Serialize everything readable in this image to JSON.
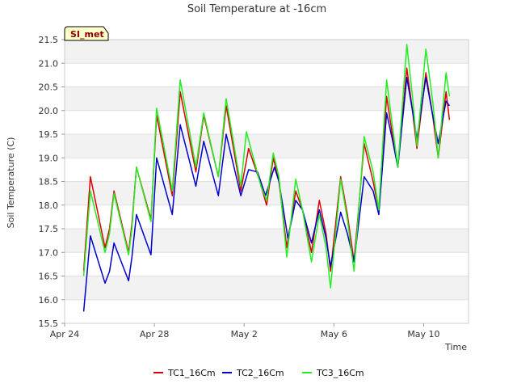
{
  "chart_data": {
    "type": "line",
    "title": "Soil Temperature at -16cm",
    "xlabel": "Time",
    "ylabel": "Soil Temperature (C)",
    "badge": "SI_met",
    "ylim": [
      15.5,
      21.5
    ],
    "yticks": [
      15.5,
      16.0,
      16.5,
      17.0,
      17.5,
      18.0,
      18.5,
      19.0,
      19.5,
      20.0,
      20.5,
      21.0,
      21.5
    ],
    "xlim_days": [
      0,
      18
    ],
    "xticks": [
      {
        "day": 0,
        "label": "Apr 24"
      },
      {
        "day": 4,
        "label": "Apr 28"
      },
      {
        "day": 8,
        "label": "May 2"
      },
      {
        "day": 12,
        "label": "May 6"
      },
      {
        "day": 16,
        "label": "May 10"
      }
    ],
    "series": [
      {
        "name": "TC1_16Cm",
        "color": "#dd0000",
        "points": [
          [
            0.85,
            16.6
          ],
          [
            1.15,
            18.6
          ],
          [
            1.8,
            17.1
          ],
          [
            2.0,
            17.5
          ],
          [
            2.2,
            18.3
          ],
          [
            2.85,
            17.0
          ],
          [
            3.0,
            17.6
          ],
          [
            3.2,
            18.8
          ],
          [
            3.85,
            17.7
          ],
          [
            4.1,
            19.9
          ],
          [
            4.8,
            18.2
          ],
          [
            5.15,
            20.4
          ],
          [
            5.85,
            18.7
          ],
          [
            6.2,
            19.9
          ],
          [
            6.85,
            18.6
          ],
          [
            7.2,
            20.1
          ],
          [
            7.85,
            18.3
          ],
          [
            8.2,
            19.2
          ],
          [
            8.7,
            18.5
          ],
          [
            9.0,
            18.0
          ],
          [
            9.3,
            19.0
          ],
          [
            9.55,
            18.5
          ],
          [
            9.9,
            17.1
          ],
          [
            10.3,
            18.3
          ],
          [
            10.6,
            17.9
          ],
          [
            11.0,
            17.0
          ],
          [
            11.35,
            18.1
          ],
          [
            11.65,
            17.4
          ],
          [
            11.85,
            16.6
          ],
          [
            12.3,
            18.6
          ],
          [
            12.6,
            17.8
          ],
          [
            12.9,
            16.8
          ],
          [
            13.35,
            19.3
          ],
          [
            13.75,
            18.5
          ],
          [
            14.0,
            17.9
          ],
          [
            14.35,
            20.3
          ],
          [
            14.6,
            19.5
          ],
          [
            14.85,
            18.8
          ],
          [
            15.25,
            20.9
          ],
          [
            15.5,
            20.0
          ],
          [
            15.7,
            19.2
          ],
          [
            16.1,
            20.8
          ],
          [
            16.4,
            19.9
          ],
          [
            16.65,
            19.0
          ],
          [
            17.0,
            20.4
          ],
          [
            17.15,
            19.8
          ]
        ]
      },
      {
        "name": "TC2_16Cm",
        "color": "#0000cc",
        "points": [
          [
            0.85,
            15.75
          ],
          [
            1.15,
            17.35
          ],
          [
            1.8,
            16.35
          ],
          [
            2.0,
            16.6
          ],
          [
            2.2,
            17.2
          ],
          [
            2.85,
            16.4
          ],
          [
            3.0,
            16.9
          ],
          [
            3.2,
            17.8
          ],
          [
            3.85,
            16.95
          ],
          [
            4.1,
            19.0
          ],
          [
            4.8,
            17.8
          ],
          [
            5.15,
            19.7
          ],
          [
            5.85,
            18.4
          ],
          [
            6.2,
            19.35
          ],
          [
            6.85,
            18.2
          ],
          [
            7.2,
            19.5
          ],
          [
            7.85,
            18.2
          ],
          [
            8.2,
            18.75
          ],
          [
            8.6,
            18.7
          ],
          [
            8.95,
            18.2
          ],
          [
            9.35,
            18.8
          ],
          [
            9.55,
            18.5
          ],
          [
            9.95,
            17.3
          ],
          [
            10.3,
            18.1
          ],
          [
            10.6,
            17.9
          ],
          [
            11.0,
            17.2
          ],
          [
            11.35,
            17.9
          ],
          [
            11.65,
            17.3
          ],
          [
            11.85,
            16.7
          ],
          [
            12.3,
            17.85
          ],
          [
            12.6,
            17.4
          ],
          [
            12.9,
            16.8
          ],
          [
            13.35,
            18.6
          ],
          [
            13.75,
            18.3
          ],
          [
            14.0,
            17.8
          ],
          [
            14.35,
            19.95
          ],
          [
            14.6,
            19.4
          ],
          [
            14.85,
            18.8
          ],
          [
            15.25,
            20.7
          ],
          [
            15.5,
            20.0
          ],
          [
            15.7,
            19.4
          ],
          [
            16.1,
            20.7
          ],
          [
            16.4,
            19.9
          ],
          [
            16.65,
            19.3
          ],
          [
            17.0,
            20.2
          ],
          [
            17.15,
            20.1
          ]
        ]
      },
      {
        "name": "TC3_16Cm",
        "color": "#22ee22",
        "points": [
          [
            0.85,
            16.5
          ],
          [
            1.15,
            18.3
          ],
          [
            1.8,
            17.0
          ],
          [
            2.0,
            17.4
          ],
          [
            2.2,
            18.25
          ],
          [
            2.85,
            16.95
          ],
          [
            3.0,
            17.5
          ],
          [
            3.2,
            18.8
          ],
          [
            3.85,
            17.65
          ],
          [
            4.1,
            20.05
          ],
          [
            4.8,
            18.3
          ],
          [
            5.15,
            20.65
          ],
          [
            5.85,
            18.8
          ],
          [
            6.2,
            19.95
          ],
          [
            6.85,
            18.6
          ],
          [
            7.2,
            20.25
          ],
          [
            7.85,
            18.4
          ],
          [
            8.1,
            19.55
          ],
          [
            8.75,
            18.4
          ],
          [
            9.0,
            18.1
          ],
          [
            9.3,
            19.1
          ],
          [
            9.55,
            18.6
          ],
          [
            9.9,
            16.9
          ],
          [
            10.3,
            18.55
          ],
          [
            10.6,
            17.9
          ],
          [
            11.0,
            16.8
          ],
          [
            11.35,
            17.8
          ],
          [
            11.65,
            17.1
          ],
          [
            11.85,
            16.25
          ],
          [
            12.3,
            18.55
          ],
          [
            12.6,
            17.7
          ],
          [
            12.9,
            16.6
          ],
          [
            13.35,
            19.45
          ],
          [
            13.75,
            18.7
          ],
          [
            14.0,
            17.9
          ],
          [
            14.35,
            20.65
          ],
          [
            14.6,
            19.7
          ],
          [
            14.85,
            18.8
          ],
          [
            15.25,
            21.4
          ],
          [
            15.5,
            20.3
          ],
          [
            15.7,
            19.25
          ],
          [
            16.1,
            21.3
          ],
          [
            16.4,
            20.2
          ],
          [
            16.65,
            19.0
          ],
          [
            17.0,
            20.8
          ],
          [
            17.15,
            20.3
          ]
        ]
      }
    ]
  }
}
